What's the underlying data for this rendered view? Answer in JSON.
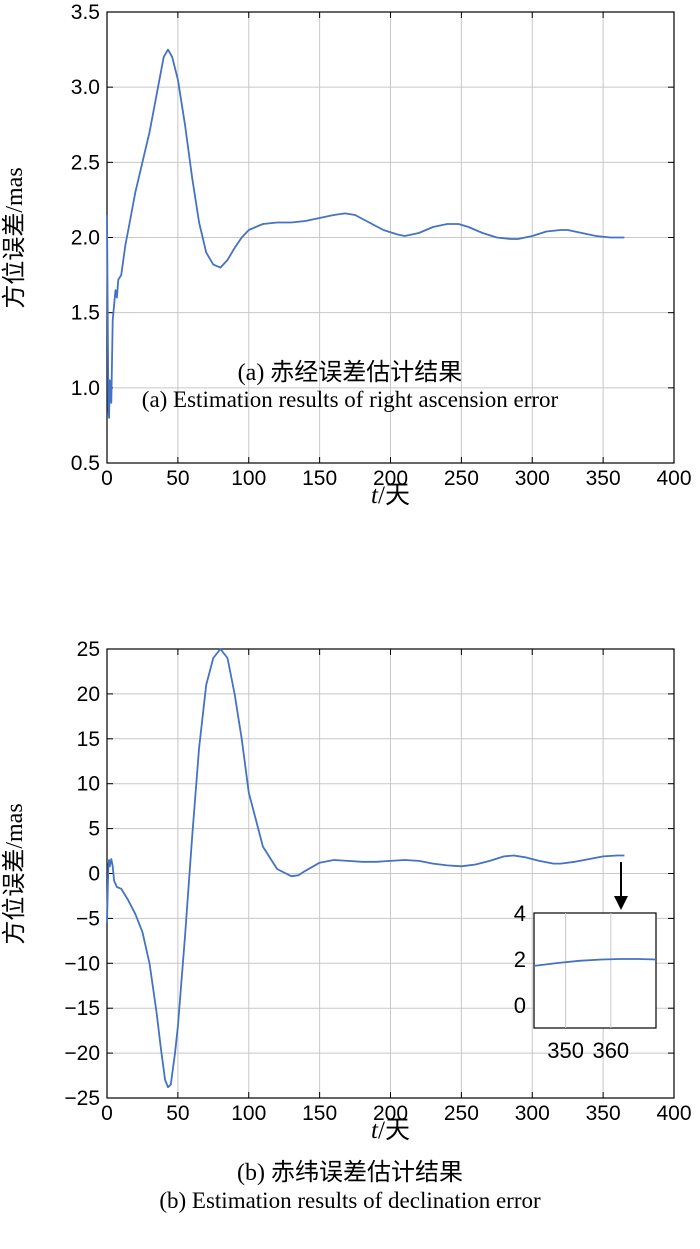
{
  "chart_data": [
    {
      "id": "a",
      "type": "line",
      "xlabel_italic": "t",
      "xlabel_rest": "/天",
      "ylabel": "方位误差/mas",
      "xlim": [
        0,
        400
      ],
      "ylim": [
        0.5,
        3.5
      ],
      "xticks": [
        0,
        50,
        100,
        150,
        200,
        250,
        300,
        350,
        400
      ],
      "yticks": [
        0.5,
        1.0,
        1.5,
        2.0,
        2.5,
        3.0,
        3.5
      ],
      "ytick_labels": [
        "0.5",
        "1.0",
        "1.5",
        "2.0",
        "2.5",
        "3.0",
        "3.5"
      ],
      "grid": true,
      "line_color": "#4472c4",
      "caption_zh": "(a) 赤经误差估计结果",
      "caption_en": "(a) Estimation results of right ascension error",
      "series": [
        {
          "x": [
            0,
            0.5,
            1,
            1.5,
            2,
            3,
            4,
            5,
            6,
            7,
            8,
            10,
            13,
            16,
            20,
            25,
            30,
            35,
            40,
            43,
            46,
            50,
            55,
            60,
            65,
            70,
            75,
            80,
            85,
            90,
            95,
            100,
            110,
            120,
            130,
            140,
            150,
            160,
            168,
            175,
            185,
            195,
            205,
            210,
            220,
            230,
            240,
            248,
            255,
            265,
            275,
            285,
            290,
            300,
            310,
            320,
            325,
            335,
            345,
            355,
            365
          ],
          "y": [
            2.15,
            1.5,
            0.85,
            0.8,
            1.05,
            0.9,
            1.45,
            1.55,
            1.65,
            1.6,
            1.72,
            1.75,
            1.95,
            2.1,
            2.3,
            2.5,
            2.7,
            2.95,
            3.2,
            3.25,
            3.2,
            3.05,
            2.75,
            2.4,
            2.1,
            1.9,
            1.82,
            1.8,
            1.85,
            1.93,
            2.0,
            2.05,
            2.09,
            2.1,
            2.1,
            2.11,
            2.13,
            2.15,
            2.16,
            2.15,
            2.1,
            2.05,
            2.02,
            2.01,
            2.03,
            2.07,
            2.09,
            2.09,
            2.07,
            2.03,
            2.0,
            1.99,
            1.99,
            2.01,
            2.04,
            2.05,
            2.05,
            2.03,
            2.01,
            2.0,
            2.0
          ]
        }
      ]
    },
    {
      "id": "b",
      "type": "line",
      "xlabel_italic": "t",
      "xlabel_rest": "/天",
      "ylabel": "方位误差/mas",
      "xlim": [
        0,
        400
      ],
      "ylim": [
        -25,
        25
      ],
      "xticks": [
        0,
        50,
        100,
        150,
        200,
        250,
        300,
        350,
        400
      ],
      "yticks": [
        -25,
        -20,
        -15,
        -10,
        -5,
        0,
        5,
        10,
        15,
        20,
        25
      ],
      "ytick_labels": [
        "−25",
        "−20",
        "−15",
        "−10",
        "−5",
        "0",
        "5",
        "10",
        "15",
        "20",
        "25"
      ],
      "grid": true,
      "line_color": "#4472c4",
      "caption_zh": "(b) 赤纬误差估计结果",
      "caption_en": "(b) Estimation results of declination error",
      "series": [
        {
          "x": [
            0,
            0.5,
            1,
            1.5,
            2,
            3,
            4,
            5,
            7,
            10,
            15,
            20,
            25,
            30,
            35,
            38,
            41,
            43,
            45,
            48,
            50,
            55,
            60,
            65,
            70,
            75,
            80,
            85,
            90,
            95,
            100,
            110,
            120,
            130,
            135,
            140,
            150,
            160,
            170,
            180,
            190,
            200,
            210,
            220,
            230,
            240,
            250,
            260,
            270,
            280,
            287,
            295,
            305,
            315,
            320,
            330,
            340,
            350,
            360,
            365
          ],
          "y": [
            -5.5,
            -2.0,
            1.0,
            1.5,
            0.8,
            1.6,
            0.8,
            -0.8,
            -1.5,
            -1.7,
            -3.0,
            -4.5,
            -6.5,
            -10.0,
            -15.5,
            -19.5,
            -23.0,
            -23.8,
            -23.5,
            -20.0,
            -17.0,
            -7.0,
            4.0,
            14.0,
            21.0,
            24.0,
            25.0,
            24.0,
            20.0,
            15.0,
            9.0,
            3.0,
            0.5,
            -0.3,
            -0.2,
            0.3,
            1.2,
            1.5,
            1.4,
            1.3,
            1.3,
            1.4,
            1.5,
            1.4,
            1.1,
            0.9,
            0.8,
            1.0,
            1.4,
            1.9,
            2.0,
            1.8,
            1.4,
            1.1,
            1.1,
            1.3,
            1.6,
            1.9,
            2.0,
            2.0
          ]
        }
      ],
      "inset": {
        "xlim": [
          343,
          370
        ],
        "ylim": [
          -1,
          4
        ],
        "xticks": [
          350,
          360
        ],
        "yticks": [
          0,
          2,
          4
        ],
        "series": [
          {
            "x": [
              343,
              348,
              353,
              358,
              362,
              366,
              370
            ],
            "y": [
              1.7,
              1.82,
              1.92,
              1.98,
              2.0,
              2.0,
              1.98
            ]
          }
        ]
      }
    }
  ]
}
